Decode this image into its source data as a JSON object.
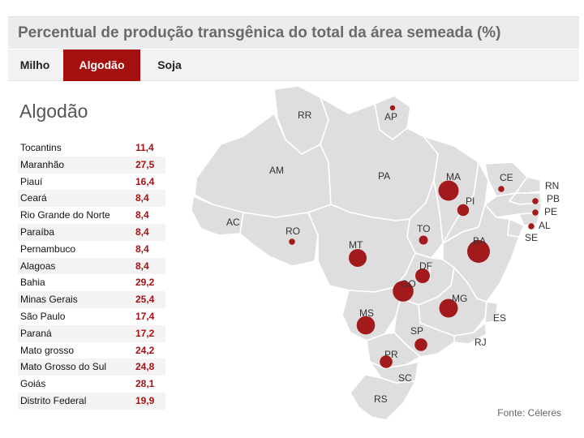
{
  "header": {
    "title": "Percentual de produção transgênica do total da área semeada (%)"
  },
  "tabs": [
    {
      "label": "Milho",
      "active": false
    },
    {
      "label": "Algodão",
      "active": true
    },
    {
      "label": "Soja",
      "active": false
    }
  ],
  "panel": {
    "title": "Algodão"
  },
  "rows": [
    {
      "label": "Tocantins",
      "value": "11,4"
    },
    {
      "label": "Maranhão",
      "value": "27,5"
    },
    {
      "label": "Piauí",
      "value": "16,4"
    },
    {
      "label": "Ceará",
      "value": "8,4"
    },
    {
      "label": "Rio Grande do Norte",
      "value": "8,4"
    },
    {
      "label": "Paraíba",
      "value": "8,4"
    },
    {
      "label": "Pernambuco",
      "value": "8,4"
    },
    {
      "label": "Alagoas",
      "value": "8,4"
    },
    {
      "label": "Bahia",
      "value": "29,2"
    },
    {
      "label": "Minas Gerais",
      "value": "25,4"
    },
    {
      "label": "São Paulo",
      "value": "17,4"
    },
    {
      "label": "Paraná",
      "value": "17,2"
    },
    {
      "label": "Mato grosso",
      "value": "24,2"
    },
    {
      "label": "Mato Grosso do Sul",
      "value": "24,8"
    },
    {
      "label": "Goiás",
      "value": "28,1"
    },
    {
      "label": "Distrito Federal",
      "value": "19,9"
    }
  ],
  "map": {
    "state_labels": [
      "RR",
      "AP",
      "AM",
      "PA",
      "MA",
      "CE",
      "RN",
      "PB",
      "PE",
      "AL",
      "SE",
      "PI",
      "AC",
      "RO",
      "TO",
      "BA",
      "MT",
      "DF",
      "GO",
      "MG",
      "ES",
      "MS",
      "SP",
      "RJ",
      "PR",
      "SC",
      "RS"
    ],
    "bubbles": [
      {
        "state": "AP"
      },
      {
        "state": "MA"
      },
      {
        "state": "CE"
      },
      {
        "state": "PI"
      },
      {
        "state": "RN"
      },
      {
        "state": "PE"
      },
      {
        "state": "AL"
      },
      {
        "state": "RO"
      },
      {
        "state": "TO"
      },
      {
        "state": "BA"
      },
      {
        "state": "MT"
      },
      {
        "state": "DF"
      },
      {
        "state": "GO"
      },
      {
        "state": "MG"
      },
      {
        "state": "MS"
      },
      {
        "state": "SP"
      },
      {
        "state": "PR"
      }
    ]
  },
  "colors": {
    "accent": "#a40f10",
    "bubble": "#a31a1c",
    "land": "#dedede",
    "border": "#ffffff"
  },
  "source": "Fonte: Céleres"
}
